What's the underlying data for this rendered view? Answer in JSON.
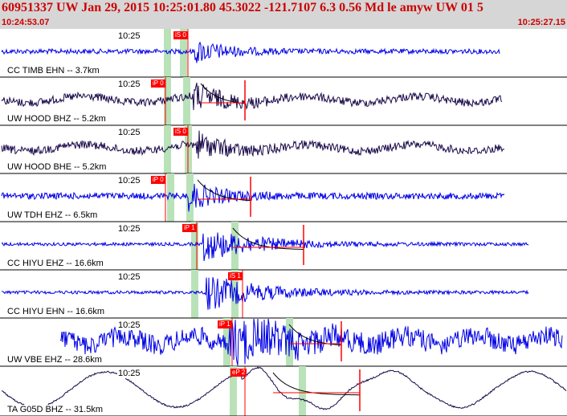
{
  "header": {
    "title": "60951337 UW Jan 29, 2015 10:25:01.80    45.3022 -121.7107  6.3 0.56 Md le amyw UW 01    5",
    "start_time": "10:24:53.07",
    "end_time": "10:25:27.15"
  },
  "colors": {
    "header_bg": "#d6d6d6",
    "header_text": "#cc0000",
    "pick_flag": "#ff0000",
    "window_band": "#b9e2b9",
    "trace_blue": "#0000e6",
    "trace_dark": "#1a0a4a",
    "coda_red": "#ff0000"
  },
  "traces": [
    {
      "time_label": "10:25",
      "station": "CC TIMB EHN -- 3.7km",
      "pick": "iS 0",
      "color": "blue"
    },
    {
      "time_label": "10:25",
      "station": "UW HOOD BHZ -- 5.2km",
      "pick": "iP 0",
      "color": "dark"
    },
    {
      "time_label": "10:25",
      "station": "UW HOOD BHE -- 5.2km",
      "pick": "iS 0",
      "color": "dark"
    },
    {
      "time_label": "10:25",
      "station": "UW TDH EHZ -- 6.5km",
      "pick": "iP 0",
      "color": "blue"
    },
    {
      "time_label": "10:25",
      "station": "CC HIYU EHZ -- 16.6km",
      "pick": "iP 1",
      "color": "blue"
    },
    {
      "time_label": "10:25",
      "station": "CC HIYU EHN -- 16.6km",
      "pick": "iS 1",
      "color": "blue"
    },
    {
      "time_label": "10:25",
      "station": "UW VBE EHZ -- 28.6km",
      "pick": "iP 1",
      "color": "blue"
    },
    {
      "time_label": "10:25",
      "station": "TA G05D BHZ -- 31.5km",
      "pick": "eP 2",
      "color": "dark"
    }
  ]
}
